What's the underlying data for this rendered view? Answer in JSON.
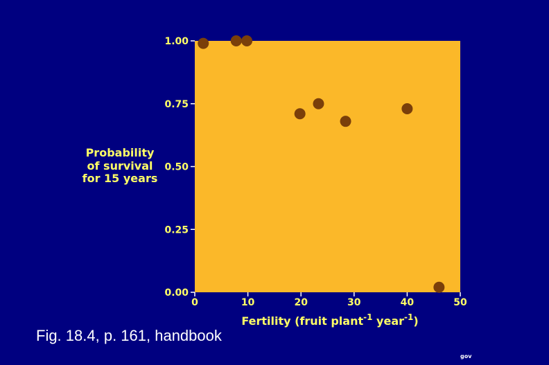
{
  "chart_data": {
    "type": "scatter",
    "xlabel": {
      "base": "Fertility (fruit plant",
      "sup1": "-1",
      "mid": " year",
      "sup2": "-1",
      "end": ")"
    },
    "ylabel_lines": [
      "Probability",
      "of survival",
      "for 15 years"
    ],
    "xlim": [
      0,
      50
    ],
    "ylim": [
      0,
      1
    ],
    "x_ticks": [
      "0",
      "10",
      "20",
      "30",
      "40",
      "50"
    ],
    "y_ticks": [
      "0.00",
      "0.25",
      "0.50",
      "0.75",
      "1.00"
    ],
    "points": [
      {
        "x": 1.6,
        "y": 0.99
      },
      {
        "x": 7.8,
        "y": 1.0
      },
      {
        "x": 9.8,
        "y": 1.0
      },
      {
        "x": 19.8,
        "y": 0.71
      },
      {
        "x": 23.3,
        "y": 0.75
      },
      {
        "x": 28.4,
        "y": 0.68
      },
      {
        "x": 40.0,
        "y": 0.73
      },
      {
        "x": 46.0,
        "y": 0.02
      }
    ],
    "grid": false,
    "colors": {
      "plot_bg": "#fbb829",
      "point": "#7a3f0a",
      "text": "#ffff66",
      "background": "#000080"
    }
  },
  "caption": "Fig. 18.4, p. 161, handbook",
  "corner_mark": "gov"
}
